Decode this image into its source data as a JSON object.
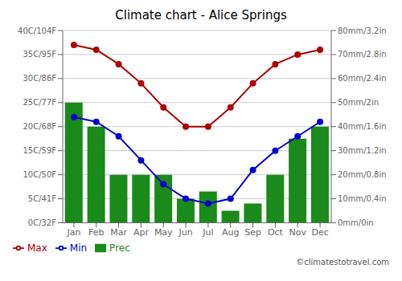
{
  "chart_data": {
    "type": "bar",
    "title": "Climate chart - Alice Springs",
    "categories": [
      "Jan",
      "Feb",
      "Mar",
      "Apr",
      "May",
      "Jun",
      "Jul",
      "Aug",
      "Sep",
      "Oct",
      "Nov",
      "Dec"
    ],
    "series": [
      {
        "name": "Prec",
        "type": "bar",
        "axis": "y2",
        "color": "#1a8a1a",
        "values": [
          50,
          40,
          20,
          20,
          20,
          10,
          13,
          5,
          8,
          20,
          35,
          40
        ]
      },
      {
        "name": "Min",
        "type": "line",
        "color": "#0000cc",
        "marker": "circle",
        "values": [
          22,
          21,
          18,
          13,
          8,
          5,
          4,
          5,
          11,
          15,
          18,
          21
        ]
      },
      {
        "name": "Max",
        "type": "line",
        "color": "#aa0000",
        "marker": "circle",
        "values": [
          37,
          36,
          33,
          29,
          24,
          20,
          20,
          24,
          29,
          33,
          35,
          36
        ]
      }
    ],
    "ylim": [
      0,
      40
    ],
    "yticks": [
      {
        "value": 0,
        "label": "0C/32F"
      },
      {
        "value": 5,
        "label": "5C/41F"
      },
      {
        "value": 10,
        "label": "10C/50F"
      },
      {
        "value": 15,
        "label": "15C/59F"
      },
      {
        "value": 20,
        "label": "20C/68F"
      },
      {
        "value": 25,
        "label": "25C/77F"
      },
      {
        "value": 30,
        "label": "30C/86F"
      },
      {
        "value": 35,
        "label": "35C/95F"
      },
      {
        "value": 40,
        "label": "40C/104F"
      }
    ],
    "y2lim": [
      0,
      80
    ],
    "y2ticks": [
      {
        "value": 0,
        "label": "0mm/0in"
      },
      {
        "value": 10,
        "label": "10mm/0.4in"
      },
      {
        "value": 20,
        "label": "20mm/0.8in"
      },
      {
        "value": 30,
        "label": "30mm/1.2in"
      },
      {
        "value": 40,
        "label": "40mm/1.6in"
      },
      {
        "value": 50,
        "label": "50mm/2in"
      },
      {
        "value": 60,
        "label": "60mm/2.4in"
      },
      {
        "value": 70,
        "label": "70mm/2.8in"
      },
      {
        "value": 80,
        "label": "80mm/3.2in"
      }
    ],
    "grid": true,
    "legend": "lower left",
    "annotations": [
      "©climatestotravel.com"
    ]
  }
}
